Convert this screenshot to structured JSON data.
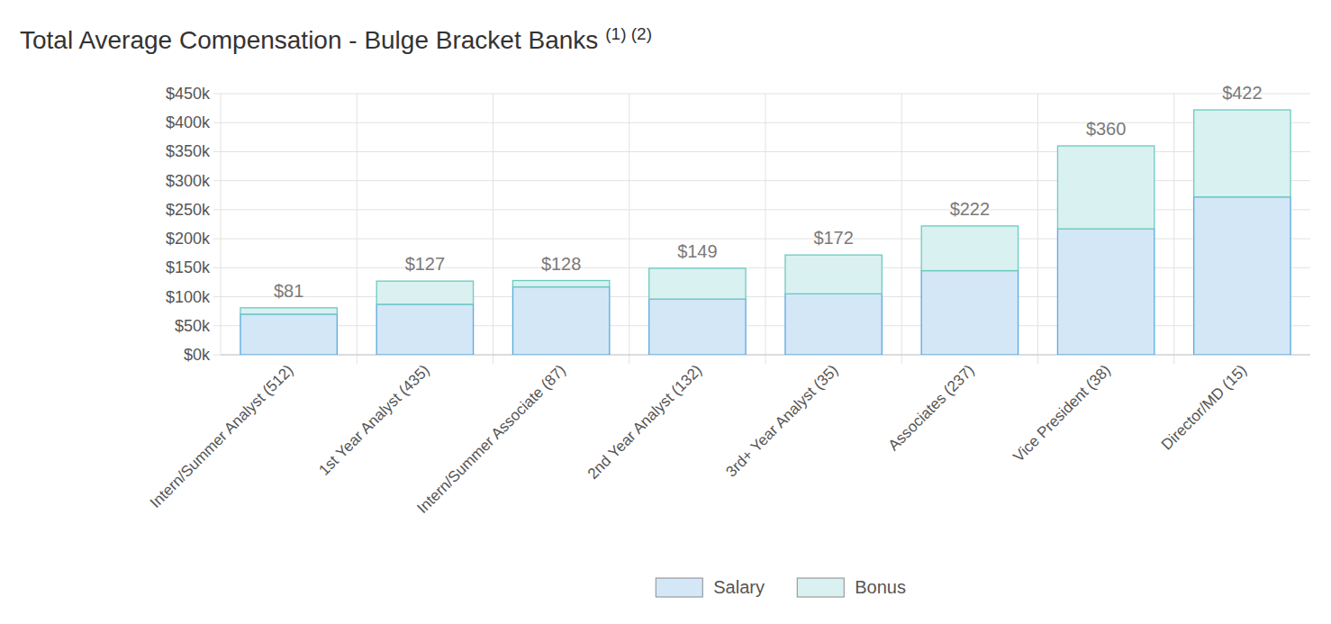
{
  "chart_data": {
    "type": "bar",
    "title": "Total Average Compensation - Bulge Bracket Banks",
    "title_superscript": "(1) (2)",
    "categories": [
      "Intern/Summer Analyst (512)",
      "1st Year Analyst (435)",
      "Intern/Summer Associate (87)",
      "2nd Year Analyst (132)",
      "3rd+ Year Analyst (35)",
      "Associates (237)",
      "Vice President (38)",
      "Director/MD (15)"
    ],
    "series": [
      {
        "name": "Salary",
        "color": "#d4e7f7",
        "values": [
          70,
          87,
          117,
          96,
          105,
          145,
          217,
          272
        ]
      },
      {
        "name": "Bonus",
        "color": "#d9f1f0",
        "values": [
          11,
          40,
          11,
          53,
          67,
          77,
          143,
          150
        ]
      }
    ],
    "totals": [
      81,
      127,
      128,
      149,
      172,
      222,
      360,
      422
    ],
    "total_labels": [
      "$81",
      "$127",
      "$128",
      "$149",
      "$172",
      "$222",
      "$360",
      "$422"
    ],
    "ylim": [
      0,
      450
    ],
    "yticks": [
      {
        "value": 0,
        "label": "$0k"
      },
      {
        "value": 50,
        "label": "$50k"
      },
      {
        "value": 100,
        "label": "$100k"
      },
      {
        "value": 150,
        "label": "$150k"
      },
      {
        "value": 200,
        "label": "$200k"
      },
      {
        "value": 250,
        "label": "$250k"
      },
      {
        "value": 300,
        "label": "$300k"
      },
      {
        "value": 350,
        "label": "$350k"
      },
      {
        "value": 400,
        "label": "$400k"
      },
      {
        "value": 450,
        "label": "$450k"
      }
    ],
    "stacked": true,
    "grid": true,
    "legend": "bottom",
    "data_labels": true
  }
}
